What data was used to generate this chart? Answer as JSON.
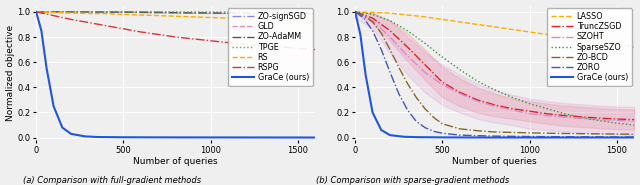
{
  "left_plot": {
    "xlabel": "Number of queries",
    "ylabel": "Normalized objective",
    "caption": "(a) Comparison with full-gradient methods",
    "xlim": [
      0,
      1600
    ],
    "ylim": [
      -0.02,
      1.05
    ],
    "xticks": [
      0,
      500,
      1000,
      1500
    ],
    "yticks": [
      0.0,
      0.2,
      0.4,
      0.6,
      0.8,
      1.0
    ],
    "series": [
      {
        "label": "ZO-signSGD",
        "color": "#8888dd",
        "linestyle": "-.",
        "linewidth": 1.0,
        "data_x": [
          0,
          200,
          400,
          600,
          800,
          1000,
          1200,
          1400,
          1600
        ],
        "data_y": [
          1.0,
          1.0,
          1.0,
          1.0,
          0.995,
          0.99,
          0.988,
          0.985,
          0.982
        ]
      },
      {
        "label": "GLD",
        "color": "#ee88bb",
        "linestyle": "--",
        "linewidth": 1.0,
        "data_x": [
          0,
          200,
          400,
          600,
          800,
          1000,
          1200,
          1400,
          1600
        ],
        "data_y": [
          1.0,
          1.0,
          0.998,
          0.995,
          0.99,
          0.988,
          0.986,
          0.982,
          0.98
        ]
      },
      {
        "label": "ZO-AdaMM",
        "color": "#555555",
        "linestyle": "-.",
        "linewidth": 1.0,
        "data_x": [
          0,
          200,
          400,
          600,
          800,
          1000,
          1200,
          1400,
          1600
        ],
        "data_y": [
          1.0,
          1.0,
          0.998,
          0.996,
          0.993,
          0.991,
          0.988,
          0.985,
          0.982
        ]
      },
      {
        "label": "TPGE",
        "color": "#44bb44",
        "linestyle": ":",
        "linewidth": 1.0,
        "data_x": [
          0,
          200,
          400,
          600,
          800,
          1000,
          1200,
          1400,
          1600
        ],
        "data_y": [
          1.0,
          1.0,
          1.0,
          1.0,
          1.0,
          0.999,
          0.999,
          0.998,
          0.997
        ]
      },
      {
        "label": "RS",
        "color": "#ffaa00",
        "linestyle": "--",
        "linewidth": 1.0,
        "data_x": [
          0,
          200,
          400,
          600,
          800,
          1000,
          1200,
          1400,
          1600
        ],
        "data_y": [
          1.0,
          0.99,
          0.985,
          0.975,
          0.965,
          0.955,
          0.945,
          0.938,
          0.93
        ]
      },
      {
        "label": "RSPG",
        "color": "#dd3333",
        "linestyle": "-.",
        "linewidth": 1.0,
        "data_x": [
          0,
          200,
          400,
          600,
          800,
          1000,
          1200,
          1400,
          1600
        ],
        "data_y": [
          1.0,
          0.94,
          0.89,
          0.84,
          0.8,
          0.77,
          0.74,
          0.72,
          0.7
        ]
      },
      {
        "label": "GraCe (ours)",
        "color": "#2255dd",
        "linestyle": "-",
        "linewidth": 1.5,
        "data_x": [
          0,
          30,
          60,
          100,
          150,
          200,
          280,
          350,
          500,
          800,
          1600
        ],
        "data_y": [
          1.0,
          0.85,
          0.55,
          0.25,
          0.08,
          0.03,
          0.01,
          0.005,
          0.003,
          0.002,
          0.001
        ]
      }
    ]
  },
  "right_plot": {
    "xlabel": "Number of queries",
    "ylabel": "Normalized objective",
    "caption": "(b) Comparison with sparse-gradient methods",
    "xlim": [
      0,
      1600
    ],
    "ylim": [
      -0.02,
      1.05
    ],
    "xticks": [
      0,
      500,
      1000,
      1500
    ],
    "yticks": [
      0.0,
      0.2,
      0.4,
      0.6,
      0.8,
      1.0
    ],
    "series": [
      {
        "label": "LASSO",
        "color": "#ffaa00",
        "linestyle": "--",
        "linewidth": 1.0,
        "data_x": [
          0,
          200,
          400,
          600,
          800,
          1000,
          1200,
          1400,
          1600
        ],
        "data_y": [
          1.0,
          0.99,
          0.96,
          0.92,
          0.88,
          0.84,
          0.8,
          0.76,
          0.72
        ]
      },
      {
        "label": "TruncZSGD",
        "color": "#dd2222",
        "linestyle": "-.",
        "linewidth": 1.0,
        "data_x": [
          0,
          100,
          200,
          300,
          400,
          500,
          600,
          700,
          800,
          900,
          1000,
          1100,
          1200,
          1300,
          1400,
          1500,
          1600
        ],
        "data_y": [
          1.0,
          0.95,
          0.85,
          0.72,
          0.58,
          0.44,
          0.36,
          0.3,
          0.26,
          0.23,
          0.21,
          0.19,
          0.175,
          0.165,
          0.155,
          0.148,
          0.143
        ],
        "fill": true,
        "fill_color": "#ee8888",
        "fill_alpha": 0.25,
        "fill_upper": [
          1.0,
          0.99,
          0.93,
          0.83,
          0.7,
          0.56,
          0.47,
          0.4,
          0.35,
          0.31,
          0.29,
          0.27,
          0.255,
          0.245,
          0.235,
          0.228,
          0.223
        ],
        "fill_lower": [
          1.0,
          0.91,
          0.77,
          0.61,
          0.46,
          0.32,
          0.25,
          0.2,
          0.17,
          0.15,
          0.13,
          0.11,
          0.095,
          0.085,
          0.075,
          0.068,
          0.063
        ]
      },
      {
        "label": "SZOHT",
        "color": "#dd88cc",
        "linestyle": "-.",
        "linewidth": 1.0,
        "data_x": [
          0,
          100,
          200,
          300,
          400,
          500,
          600,
          700,
          800,
          900,
          1000,
          1100,
          1200,
          1300,
          1400,
          1500,
          1600
        ],
        "data_y": [
          1.0,
          0.93,
          0.8,
          0.65,
          0.52,
          0.42,
          0.35,
          0.29,
          0.25,
          0.22,
          0.19,
          0.175,
          0.162,
          0.152,
          0.143,
          0.137,
          0.132
        ],
        "fill": true,
        "fill_color": "#dd88cc",
        "fill_alpha": 0.2,
        "fill_upper": [
          1.0,
          0.99,
          0.93,
          0.8,
          0.68,
          0.58,
          0.5,
          0.43,
          0.38,
          0.34,
          0.31,
          0.29,
          0.275,
          0.265,
          0.255,
          0.248,
          0.243
        ],
        "fill_lower": [
          0.95,
          0.87,
          0.67,
          0.5,
          0.36,
          0.26,
          0.2,
          0.15,
          0.12,
          0.1,
          0.07,
          0.06,
          0.049,
          0.039,
          0.031,
          0.026,
          0.021
        ]
      },
      {
        "label": "SparseSZO",
        "color": "#339933",
        "linestyle": ":",
        "linewidth": 1.0,
        "data_x": [
          0,
          100,
          200,
          300,
          400,
          500,
          600,
          700,
          800,
          900,
          1000,
          1100,
          1200,
          1300,
          1400,
          1500,
          1600
        ],
        "data_y": [
          1.0,
          0.98,
          0.93,
          0.85,
          0.75,
          0.64,
          0.54,
          0.45,
          0.38,
          0.32,
          0.27,
          0.23,
          0.19,
          0.16,
          0.135,
          0.115,
          0.1
        ]
      },
      {
        "label": "ZO-BCD",
        "color": "#886622",
        "linestyle": "-.",
        "linewidth": 1.0,
        "data_x": [
          0,
          50,
          100,
          150,
          200,
          250,
          300,
          350,
          400,
          450,
          500,
          600,
          700,
          800,
          1000,
          1200,
          1400,
          1600
        ],
        "data_y": [
          1.0,
          0.97,
          0.92,
          0.83,
          0.7,
          0.56,
          0.43,
          0.32,
          0.23,
          0.16,
          0.11,
          0.07,
          0.055,
          0.045,
          0.038,
          0.033,
          0.03,
          0.027
        ]
      },
      {
        "label": "ZORO",
        "color": "#4455bb",
        "linestyle": "-.",
        "linewidth": 1.0,
        "data_x": [
          0,
          50,
          100,
          150,
          200,
          250,
          300,
          350,
          400,
          450,
          500,
          600,
          800,
          1000,
          1200,
          1400,
          1600
        ],
        "data_y": [
          1.0,
          0.95,
          0.85,
          0.7,
          0.52,
          0.35,
          0.22,
          0.13,
          0.08,
          0.05,
          0.035,
          0.02,
          0.012,
          0.009,
          0.007,
          0.006,
          0.005
        ]
      },
      {
        "label": "GraCe (ours)",
        "color": "#2255dd",
        "linestyle": "-",
        "linewidth": 1.5,
        "data_x": [
          0,
          30,
          60,
          100,
          150,
          200,
          280,
          350,
          500,
          800,
          1600
        ],
        "data_y": [
          1.0,
          0.82,
          0.5,
          0.2,
          0.06,
          0.02,
          0.007,
          0.004,
          0.002,
          0.001,
          0.001
        ]
      }
    ]
  },
  "bg_color": "#efefef",
  "grid_color": "#ffffff",
  "fontsize": 6.5,
  "legend_fontsize": 5.8
}
